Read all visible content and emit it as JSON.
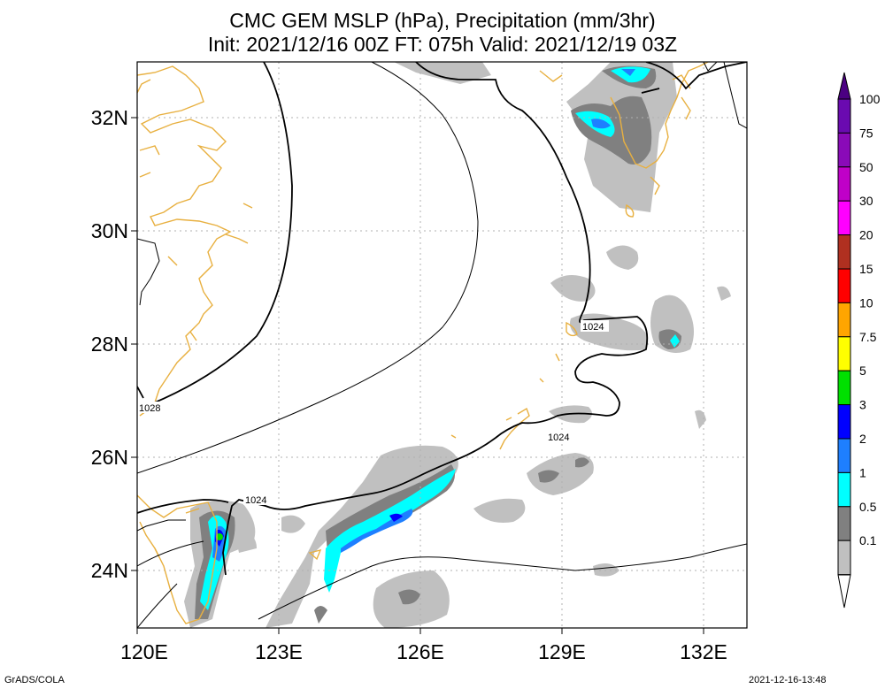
{
  "title_line1": "CMC GEM MSLP (hPa), Precipitation (mm/3hr)",
  "title_line2": "Init: 2021/12/16 00Z  FT: 075h  Valid: 2021/12/19 03Z",
  "lat_labels": [
    "32N",
    "30N",
    "28N",
    "26N",
    "24N"
  ],
  "lon_labels": [
    "120E",
    "123E",
    "126E",
    "129E",
    "132E"
  ],
  "isobar_labels": [
    "1028",
    "1024",
    "1024",
    "1024"
  ],
  "colorbar": {
    "labels": [
      "100",
      "75",
      "50",
      "30",
      "20",
      "15",
      "10",
      "7.5",
      "5",
      "3",
      "2",
      "1",
      "0.5",
      "0.1"
    ],
    "colors": [
      "#6a0ab0",
      "#8a0ab8",
      "#c000c8",
      "#ff00ff",
      "#b03020",
      "#ff0000",
      "#ffa500",
      "#ffff00",
      "#00e000",
      "#0000ff",
      "#1e7fff",
      "#00ffff",
      "#808080",
      "#c0c0c0"
    ],
    "top_color": "#4b0082",
    "bottom_color": "#ffffff"
  },
  "colors": {
    "coast": "#e8b040",
    "grid": "#b0b0b0"
  },
  "footer_left": "GrADS/COLA",
  "footer_right": "2021-12-16-13:48"
}
